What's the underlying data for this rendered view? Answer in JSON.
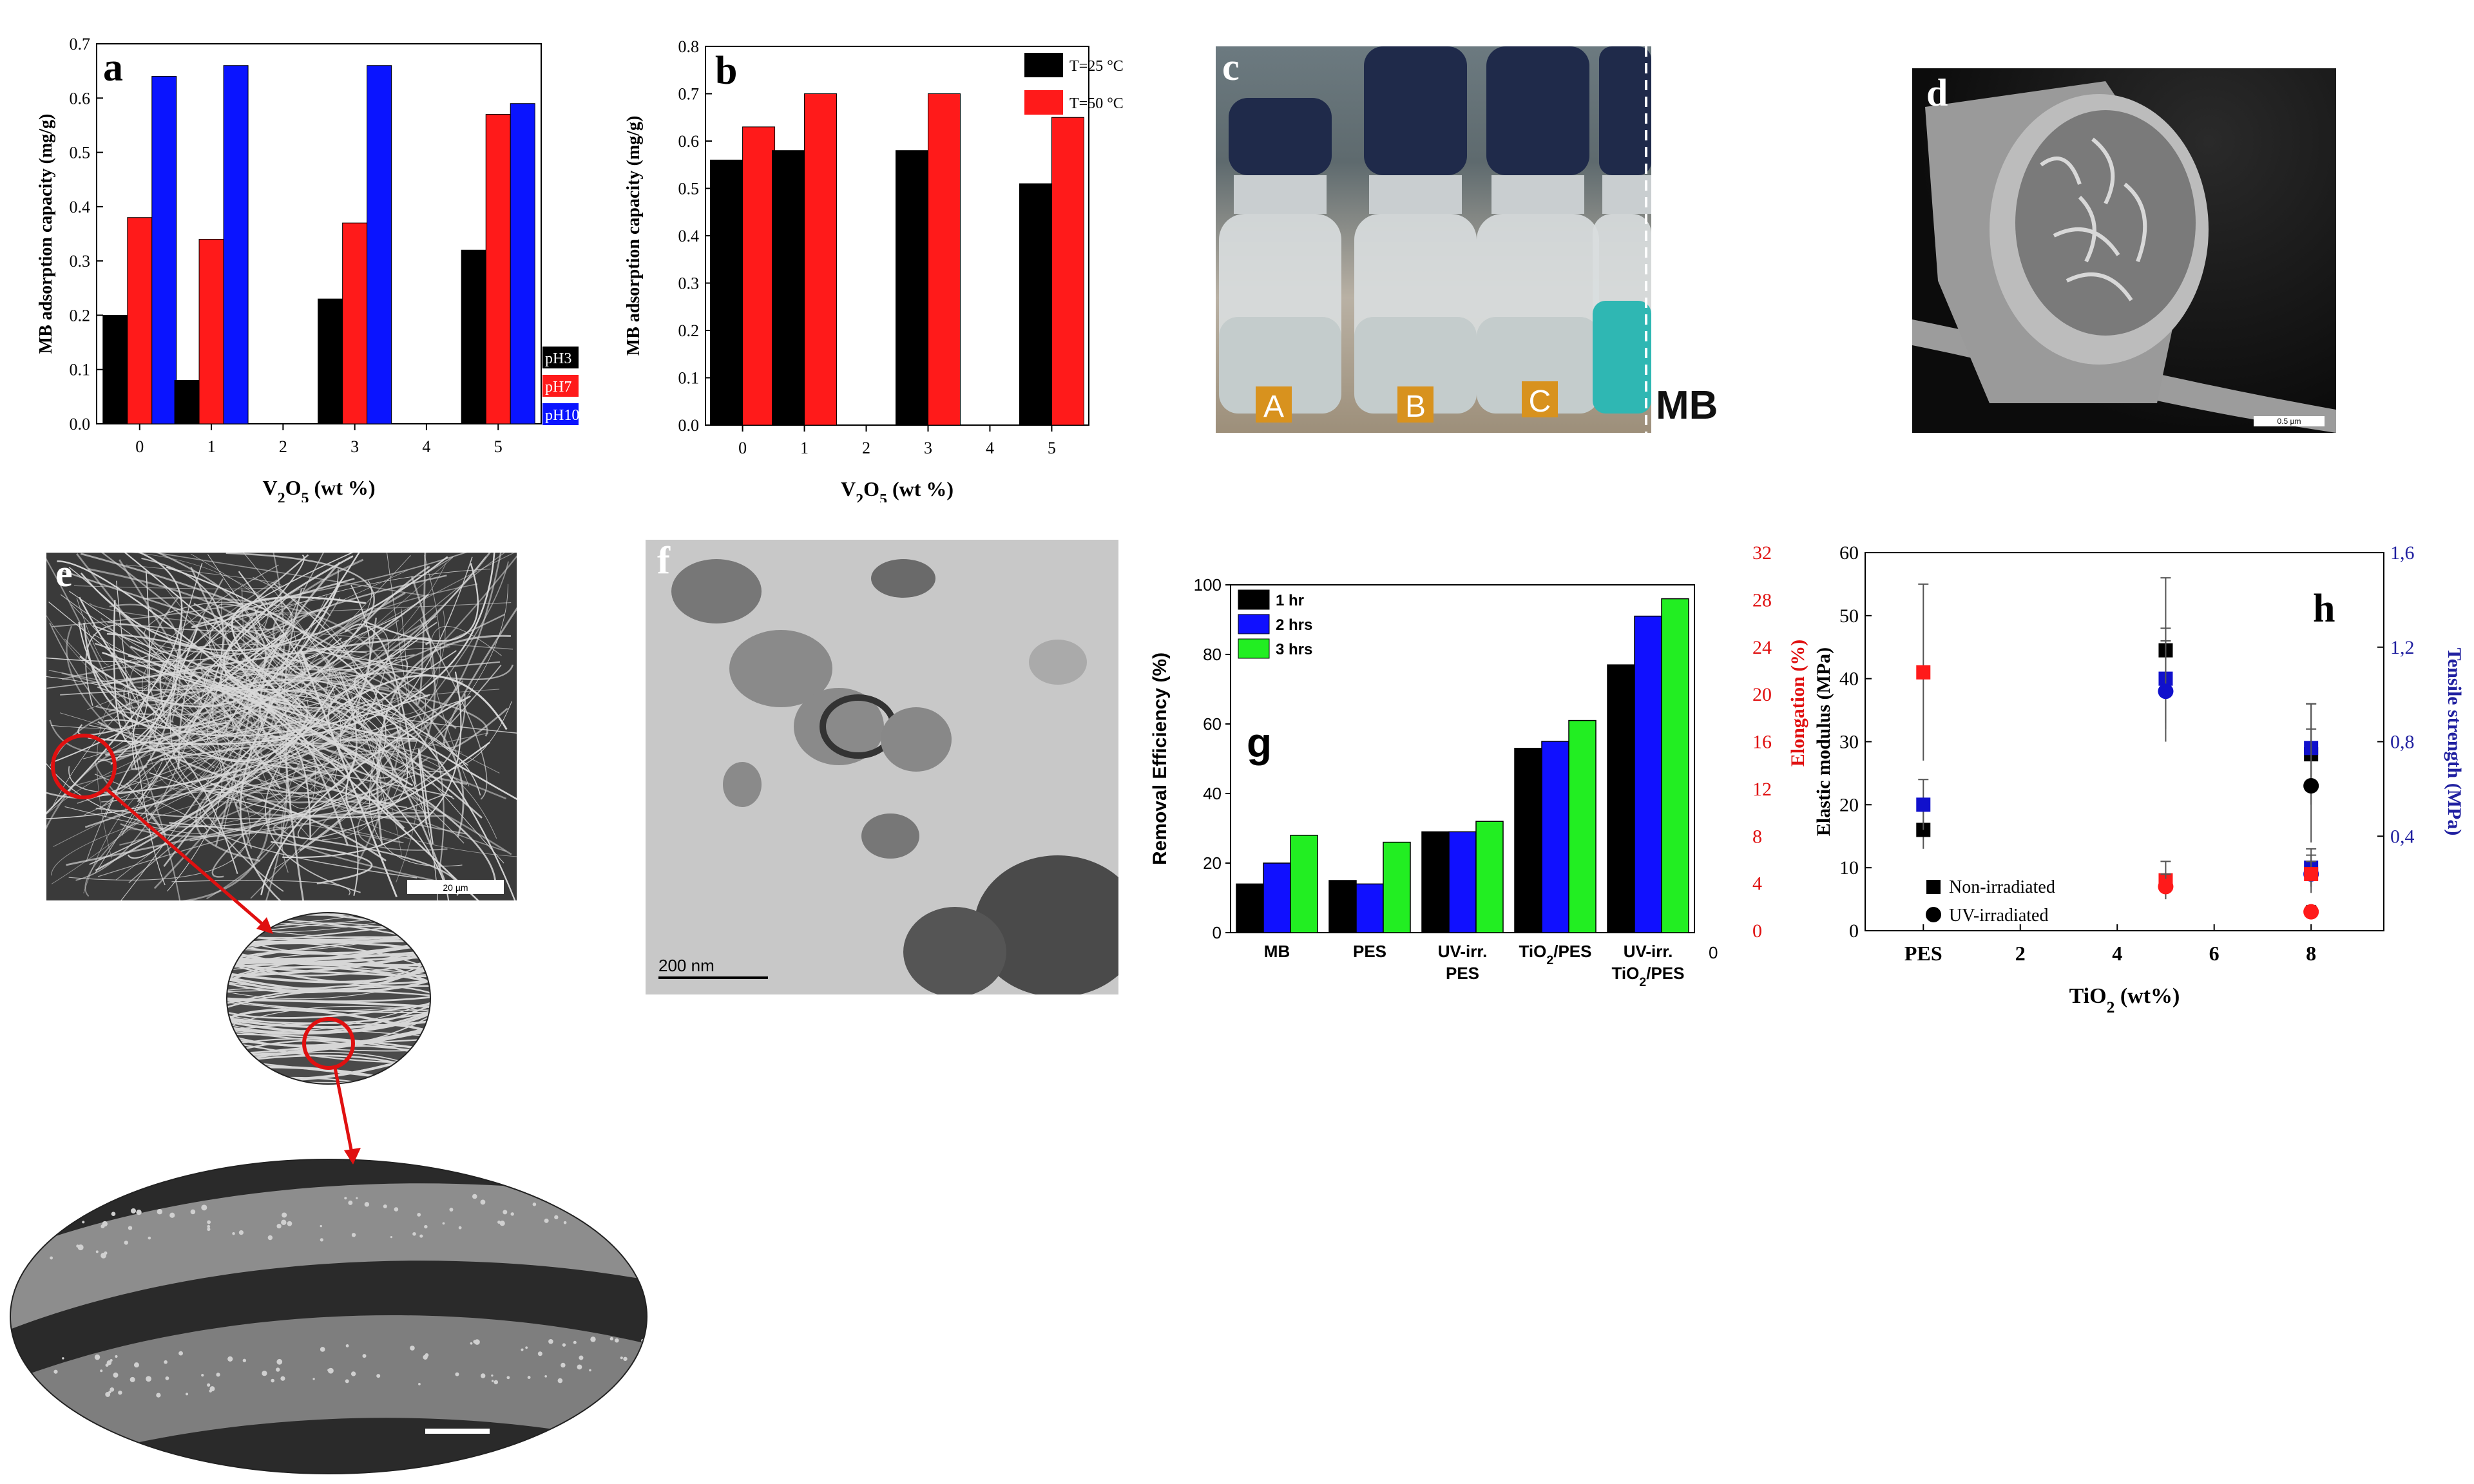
{
  "chart_data": [
    {
      "panel": "a",
      "type": "bar",
      "categories": [
        "0",
        "1",
        "3",
        "5"
      ],
      "x_ticks": [
        "0",
        "1",
        "2",
        "3",
        "4",
        "5"
      ],
      "series": [
        {
          "name": "pH3",
          "color": "#000000",
          "values": [
            0.2,
            0.08,
            0.23,
            0.32
          ]
        },
        {
          "name": "pH7",
          "color": "#ff1a1a",
          "values": [
            0.38,
            0.34,
            0.37,
            0.57
          ]
        },
        {
          "name": "pH10",
          "color": "#0a14ff",
          "values": [
            0.64,
            0.66,
            0.66,
            0.59
          ]
        }
      ],
      "ylabel": "MB adsorption capacity (mg/g)",
      "xlabel": "V2O5 (wt %)",
      "ylim": [
        0,
        0.7
      ],
      "yticks": [
        "0.0",
        "0.1",
        "0.2",
        "0.3",
        "0.4",
        "0.5",
        "0.6",
        "0.7"
      ],
      "legend_position": "right-bottom outside"
    },
    {
      "panel": "b",
      "type": "bar",
      "categories": [
        "0",
        "1",
        "3",
        "5"
      ],
      "x_ticks": [
        "0",
        "1",
        "2",
        "3",
        "4",
        "5"
      ],
      "series": [
        {
          "name": "T=25 °C",
          "color": "#000000",
          "values": [
            0.56,
            0.58,
            0.58,
            0.51
          ]
        },
        {
          "name": "T=50 °C",
          "color": "#ff1a1a",
          "values": [
            0.63,
            0.7,
            0.7,
            0.65
          ]
        }
      ],
      "ylabel": "MB adsorption capacity (mg/g)",
      "xlabel": "V2O5 (wt %)",
      "ylim": [
        0,
        0.8
      ],
      "yticks": [
        "0.0",
        "0.1",
        "0.2",
        "0.3",
        "0.4",
        "0.5",
        "0.6",
        "0.7",
        "0.8"
      ],
      "legend_position": "top-right"
    },
    {
      "panel": "g",
      "type": "bar",
      "categories": [
        "MB",
        "PES",
        "UV-irr. PES",
        "TiO2/PES",
        "UV-irr. TiO2/PES"
      ],
      "series": [
        {
          "name": "1 hr",
          "color": "#000000",
          "values": [
            14,
            15,
            29,
            53,
            77
          ]
        },
        {
          "name": "2 hrs",
          "color": "#1010ff",
          "values": [
            20,
            14,
            29,
            55,
            91
          ]
        },
        {
          "name": "3 hrs",
          "color": "#22ee22",
          "values": [
            28,
            26,
            32,
            61,
            96
          ]
        }
      ],
      "ylabel": "Removal Efficiency (%)",
      "ylim": [
        0,
        100
      ],
      "yticks": [
        "0",
        "20",
        "40",
        "60",
        "80",
        "100"
      ],
      "legend_position": "top-left"
    },
    {
      "panel": "h",
      "type": "scatter",
      "x_ticks": [
        "PES",
        "2",
        "4",
        "6",
        "8"
      ],
      "xlabel": "TiO2 (wt%)",
      "ylabel_left": "Elastic modulus (MPa)",
      "ylabel_left2": "Elongation (%)",
      "ylabel_right": "Tensile strength (MPa)",
      "yticks_left": [
        "0",
        "10",
        "20",
        "30",
        "40",
        "50",
        "60"
      ],
      "yticks_left2": [
        "0",
        "4",
        "8",
        "12",
        "16",
        "20",
        "24",
        "28",
        "32"
      ],
      "yticks_right": [
        "0,4",
        "0,8",
        "1,2",
        "1,6"
      ],
      "ylim_left": [
        0,
        60
      ],
      "legend": [
        "Non-irradiated",
        "UV-irradiated"
      ],
      "points": [
        {
          "x": 0,
          "y": 16,
          "err": 3,
          "color": "#000000",
          "marker": "square"
        },
        {
          "x": 0,
          "y": 41,
          "err": 14,
          "color": "#ff1a1a",
          "marker": "square"
        },
        {
          "x": 0,
          "y": 20,
          "err": 4,
          "color": "#1010cc",
          "marker": "square"
        },
        {
          "x": 5,
          "y": 44.5,
          "err": 11.5,
          "color": "#000000",
          "marker": "square"
        },
        {
          "x": 5,
          "y": 40,
          "err": 8,
          "color": "#1010cc",
          "marker": "square"
        },
        {
          "x": 5,
          "y": 38,
          "err": 8,
          "color": "#1010cc",
          "marker": "circle"
        },
        {
          "x": 5,
          "y": 8,
          "err": 3,
          "color": "#ff1a1a",
          "marker": "square"
        },
        {
          "x": 5,
          "y": 7,
          "err": 2,
          "color": "#ff1a1a",
          "marker": "circle"
        },
        {
          "x": 8,
          "y": 28,
          "err": 8,
          "color": "#000000",
          "marker": "square"
        },
        {
          "x": 8,
          "y": 29,
          "err": 7,
          "color": "#1010cc",
          "marker": "square"
        },
        {
          "x": 8,
          "y": 23,
          "err": 9,
          "color": "#000000",
          "marker": "circle"
        },
        {
          "x": 8,
          "y": 10,
          "err": 3,
          "color": "#1010cc",
          "marker": "square"
        },
        {
          "x": 8,
          "y": 9,
          "err": 3,
          "color": "#1010cc",
          "marker": "circle"
        },
        {
          "x": 8,
          "y": 9,
          "err": 2,
          "color": "#ff1a1a",
          "marker": "square"
        },
        {
          "x": 8,
          "y": 3,
          "err": 1,
          "color": "#ff1a1a",
          "marker": "circle"
        }
      ]
    }
  ],
  "panel_labels": {
    "a": "a",
    "b": "b",
    "c": "c",
    "d": "d",
    "e": "e",
    "f": "f",
    "g": "g",
    "h": "h"
  },
  "photo_c": {
    "vial_labels": [
      "A",
      "B",
      "C",
      "MB"
    ]
  },
  "micrographs": {
    "d_scale": "0.5 µm",
    "e_scale": "20 µm",
    "f_scale": "200  nm"
  },
  "panel_g_extra_tick": "0"
}
